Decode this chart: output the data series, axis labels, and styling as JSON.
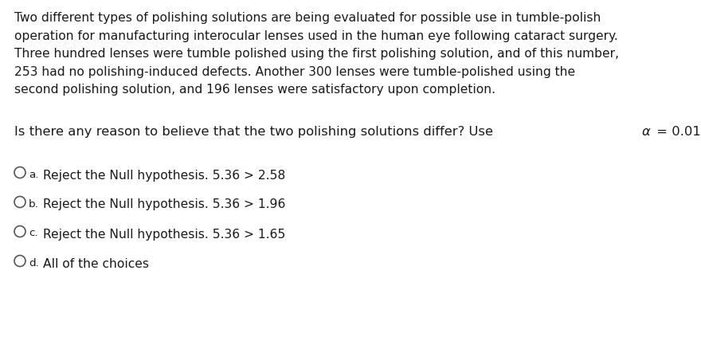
{
  "background_color": "#ffffff",
  "paragraph": "Two different types of polishing solutions are being evaluated for possible use in tumble-polish\noperation for manufacturing interocular lenses used in the human eye following cataract surgery.\nThree hundred lenses were tumble polished using the first polishing solution, and of this number,\n253 had no polishing-induced defects. Another 300 lenses were tumble-polished using the\nsecond polishing solution, and 196 lenses were satisfactory upon completion.",
  "question_plain": "Is there any reason to believe that the two polishing solutions differ? Use ",
  "question_alpha": "α",
  "question_end": " = 0.01.",
  "choices": [
    {
      "label": "a",
      "text": "Reject the Null hypothesis. 5.36 > 2.58"
    },
    {
      "label": "b",
      "text": "Reject the Null hypothesis. 5.36 > 1.96"
    },
    {
      "label": "c",
      "text": "Reject the Null hypothesis. 5.36 > 1.65"
    },
    {
      "label": "d",
      "text": "All of the choices"
    }
  ],
  "font_size_paragraph": 11.2,
  "font_size_question": 11.8,
  "font_size_choices": 11.2,
  "text_color": "#1a1a1a",
  "circle_color": "#555555",
  "font_family": "DejaVu Sans"
}
